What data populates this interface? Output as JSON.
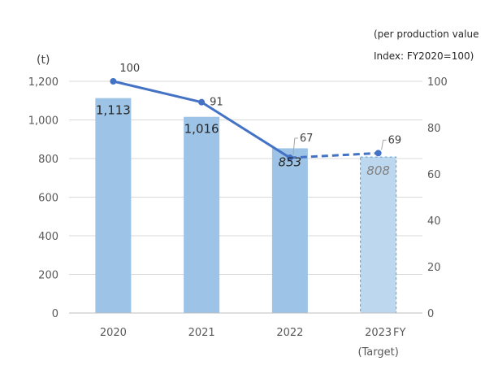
{
  "chart_data": {
    "type": "bar",
    "categories": [
      "2020",
      "2021",
      "2022",
      "2023"
    ],
    "category_sublabels": [
      "",
      "",
      "",
      "(Target)"
    ],
    "x_axis_title": "FY",
    "y_left": {
      "unit_label": "(t)",
      "ylim": [
        0,
        1200
      ],
      "ticks": [
        "0",
        "200",
        "400",
        "600",
        "800",
        "1,000",
        "1,200"
      ]
    },
    "y_right": {
      "note_line1": "(per production value",
      "note_line2": "Index: FY2020=100)",
      "ylim": [
        0,
        100
      ],
      "ticks": [
        "0",
        "20",
        "40",
        "60",
        "80",
        "100"
      ]
    },
    "bars": {
      "values": [
        1113,
        1016,
        853,
        808
      ],
      "labels": [
        "1,113",
        "1,016",
        "853",
        "808"
      ],
      "target_flags": [
        false,
        false,
        false,
        true
      ],
      "color": "#9DC3E6",
      "target_color": "#BDD7EE"
    },
    "line": {
      "values": [
        100,
        91,
        67,
        69
      ],
      "labels": [
        "100",
        "91",
        "67",
        "69"
      ],
      "dashed_from_index": 2,
      "color": "#4472C4"
    },
    "grid": true,
    "legend": "none"
  }
}
